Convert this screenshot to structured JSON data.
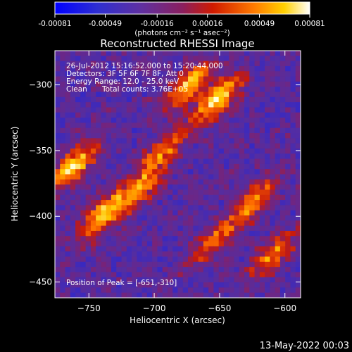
{
  "chart_data": {
    "type": "heatmap",
    "title": "Reconstructed RHESSI Image",
    "xlabel": "Heliocentric X (arcsec)",
    "ylabel": "Heliocentric Y (arcsec)",
    "xlim": [
      -776,
      -588
    ],
    "ylim": [
      -462,
      -274
    ],
    "x_ticks": [
      -750,
      -700,
      -650,
      -600
    ],
    "y_ticks": [
      -300,
      -350,
      -400,
      -450
    ],
    "colorbar": {
      "range": [
        -0.00081,
        0.00081
      ],
      "tick_values": [
        -0.00081,
        -0.00049,
        -0.00016,
        0.00016,
        0.00049,
        0.00081
      ],
      "tick_labels": [
        "-0.00081",
        "-0.00049",
        "-0.00016",
        "0.00016",
        "0.00049",
        "0.00081"
      ],
      "unit_label": "(photons cm⁻² s⁻¹ asec⁻²)"
    },
    "annotations": {
      "time_range": "26-Jul-2012 15:16:52.000 to 15:20:44.000",
      "detectors": "Detectors: 3F 5F 6F 7F 8F, Att 0",
      "energy_range": "Energy Range: 12.0 - 25.0 keV",
      "algorithm": "Clean",
      "total_counts": "Total counts: 3.76E+05",
      "peak_position": "Position of Peak = [-651,-310]"
    },
    "bright_sources": [
      {
        "x": -651,
        "y": -310,
        "relative_intensity": 1.0
      },
      {
        "x": -673,
        "y": -300,
        "relative_intensity": 0.85
      },
      {
        "x": -693,
        "y": -350,
        "relative_intensity": 0.65
      },
      {
        "x": -762,
        "y": -362,
        "relative_intensity": 0.95
      },
      {
        "x": -740,
        "y": -400,
        "relative_intensity": 0.9
      },
      {
        "x": -712,
        "y": -380,
        "relative_intensity": 0.7
      },
      {
        "x": -625,
        "y": -390,
        "relative_intensity": 0.75
      },
      {
        "x": -610,
        "y": -430,
        "relative_intensity": 0.7
      },
      {
        "x": -655,
        "y": -420,
        "relative_intensity": 0.55
      }
    ]
  },
  "footer_date": "13-May-2022 00:03",
  "colors": {
    "background": "#000000",
    "foreground": "#ffffff",
    "colormap": [
      "#0000ff",
      "#4b2fa0",
      "#7a2a7a",
      "#cc1f00",
      "#ff7a00",
      "#ffcc00",
      "#ffffff"
    ]
  }
}
